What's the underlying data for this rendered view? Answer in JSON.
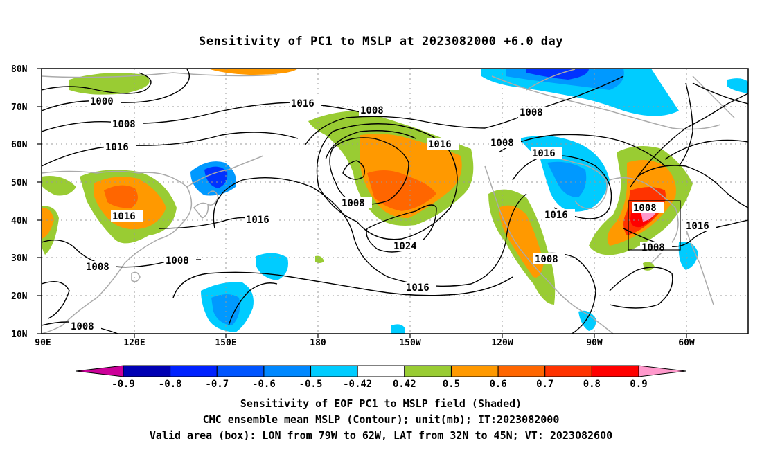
{
  "title": "Sensitivity of PC1 to MSLP at 2023082000 +6.0 day",
  "map": {
    "lat_labels": [
      "80N",
      "70N",
      "60N",
      "50N",
      "40N",
      "30N",
      "20N",
      "10N"
    ],
    "lon_labels": [
      "90E",
      "120E",
      "150E",
      "180",
      "150W",
      "120W",
      "90W",
      "60W"
    ],
    "grid": "dotted",
    "contour_labels": [
      "1000",
      "1016",
      "1008",
      "1008",
      "1008",
      "1016",
      "1016",
      "1016",
      "1008",
      "1016",
      "1024",
      "1008",
      "1008",
      "1016",
      "1008",
      "1016",
      "1008",
      "1008",
      "1016",
      "1008",
      "1008"
    ],
    "shading_colors": {
      "positive_low": "#99cc33",
      "positive_mid": "#ff9900",
      "positive_high": "#ff6600",
      "positive_max": "#ff0000",
      "negative_low": "#00ccff",
      "negative_mid": "#0099ff",
      "negative_high": "#0033ff"
    },
    "valid_box_label": "Valid area box"
  },
  "colorbar": {
    "labels": [
      "-0.9",
      "-0.8",
      "-0.7",
      "-0.6",
      "-0.5",
      "-0.42",
      "0.42",
      "0.5",
      "0.6",
      "0.7",
      "0.8",
      "0.9"
    ],
    "colors": [
      "#cc0099",
      "#0000b3",
      "#0022ff",
      "#0055ff",
      "#0088ff",
      "#00ccff",
      "#ffffff",
      "#99cc33",
      "#ff9900",
      "#ff6600",
      "#ff3300",
      "#ff0000",
      "#ff99cc"
    ]
  },
  "captions": {
    "line1": "Sensitivity of EOF PC1 to MSLP field (Shaded)",
    "line2": "CMC ensemble mean MSLP (Contour); unit(mb); IT:2023082000",
    "line3": "Valid area (box): LON from 79W to 62W, LAT from 32N to 45N; VT: 2023082600"
  }
}
